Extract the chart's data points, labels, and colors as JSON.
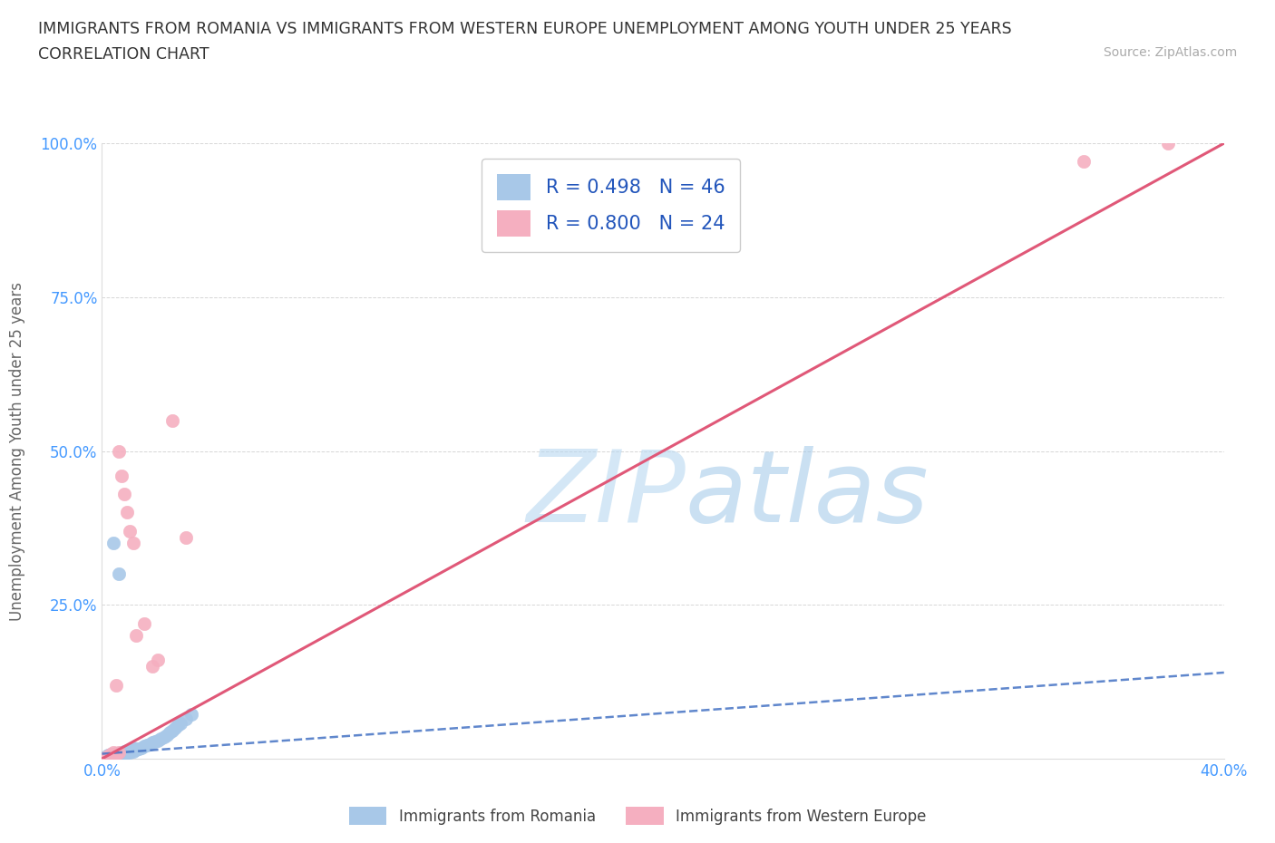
{
  "title_line1": "IMMIGRANTS FROM ROMANIA VS IMMIGRANTS FROM WESTERN EUROPE UNEMPLOYMENT AMONG YOUTH UNDER 25 YEARS",
  "title_line2": "CORRELATION CHART",
  "source": "Source: ZipAtlas.com",
  "ylabel": "Unemployment Among Youth under 25 years",
  "xlim": [
    0.0,
    0.4
  ],
  "ylim": [
    0.0,
    1.0
  ],
  "xticks": [
    0.0,
    0.05,
    0.1,
    0.15,
    0.2,
    0.25,
    0.3,
    0.35,
    0.4
  ],
  "yticks": [
    0.0,
    0.25,
    0.5,
    0.75,
    1.0
  ],
  "yticklabels": [
    "",
    "25.0%",
    "50.0%",
    "75.0%",
    "100.0%"
  ],
  "R_romania": 0.498,
  "N_romania": 46,
  "R_western": 0.8,
  "N_western": 24,
  "color_romania": "#a8c8e8",
  "color_western": "#f5afc0",
  "line_romania_color": "#4472c4",
  "line_western_color": "#e05878",
  "watermark_color": "#cce4f5",
  "legend_label_romania": "Immigrants from Romania",
  "legend_label_western": "Immigrants from Western Europe",
  "romania_x": [
    0.001,
    0.001,
    0.002,
    0.002,
    0.002,
    0.003,
    0.003,
    0.003,
    0.004,
    0.004,
    0.005,
    0.005,
    0.005,
    0.006,
    0.006,
    0.007,
    0.007,
    0.008,
    0.008,
    0.009,
    0.009,
    0.01,
    0.01,
    0.011,
    0.011,
    0.012,
    0.013,
    0.014,
    0.015,
    0.016,
    0.017,
    0.018,
    0.019,
    0.02,
    0.021,
    0.022,
    0.023,
    0.024,
    0.025,
    0.026,
    0.027,
    0.028,
    0.03,
    0.032,
    0.004,
    0.006
  ],
  "romania_y": [
    0.001,
    0.003,
    0.002,
    0.004,
    0.006,
    0.003,
    0.005,
    0.007,
    0.004,
    0.006,
    0.005,
    0.007,
    0.009,
    0.006,
    0.008,
    0.007,
    0.01,
    0.008,
    0.012,
    0.01,
    0.013,
    0.011,
    0.015,
    0.012,
    0.017,
    0.014,
    0.016,
    0.018,
    0.02,
    0.022,
    0.024,
    0.026,
    0.028,
    0.03,
    0.033,
    0.036,
    0.039,
    0.042,
    0.046,
    0.05,
    0.054,
    0.058,
    0.065,
    0.072,
    0.35,
    0.3
  ],
  "western_x": [
    0.001,
    0.002,
    0.002,
    0.003,
    0.003,
    0.004,
    0.004,
    0.005,
    0.005,
    0.006,
    0.006,
    0.007,
    0.008,
    0.009,
    0.01,
    0.011,
    0.012,
    0.015,
    0.018,
    0.02,
    0.025,
    0.03,
    0.35,
    0.38
  ],
  "western_y": [
    0.001,
    0.002,
    0.005,
    0.004,
    0.008,
    0.006,
    0.01,
    0.008,
    0.12,
    0.01,
    0.5,
    0.46,
    0.43,
    0.4,
    0.37,
    0.35,
    0.2,
    0.22,
    0.15,
    0.16,
    0.55,
    0.36,
    0.97,
    1.0
  ],
  "line_romania_slope": 2.2,
  "line_romania_intercept": 0.01,
  "line_western_slope": 2.5,
  "line_western_intercept": 0.02
}
